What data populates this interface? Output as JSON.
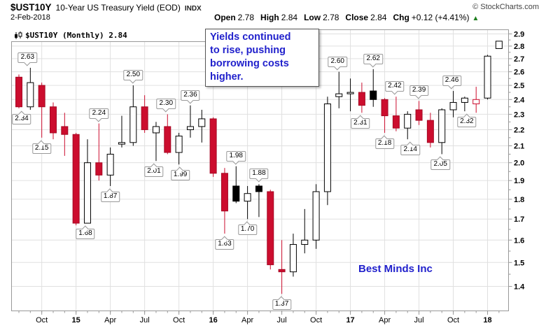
{
  "header": {
    "symbol": "$UST10Y",
    "title": "10-Year US Treasury Yield (EOD)",
    "exchange": "INDX",
    "copyright": "© StockCharts.com",
    "date": "2-Feb-2018",
    "quote": {
      "open_label": "Open",
      "open_value": "2.78",
      "high_label": "High",
      "high_value": "2.84",
      "low_label": "Low",
      "low_value": "2.78",
      "close_label": "Close",
      "close_value": "2.84",
      "chg_label": "Chg",
      "chg_value": "+0.12 (+4.41%)",
      "arrow": "▲"
    }
  },
  "legend": {
    "label": "$UST10Y (Monthly) 2.84"
  },
  "annotation": {
    "lines": [
      "Yields continued",
      "to rise, pushing",
      "borrowing costs",
      "higher."
    ]
  },
  "watermark": "Best Minds Inc",
  "colors": {
    "down_fill": "#cc0d2e",
    "down_stroke": "#a50a25",
    "black_fill": "#000000",
    "up_fill": "#ffffff",
    "outline": "#000000",
    "grid": "#e0e0e0",
    "frame": "#999999",
    "annotation_blue": "#2121cc",
    "change_green": "#1e7e1e",
    "tick_text": "#000000"
  },
  "chart_data": {
    "type": "candlestick",
    "scale": "log",
    "title": "$UST10Y (Monthly) 2.84",
    "y_ticks": [
      "2.9",
      "2.8",
      "2.7",
      "2.6",
      "2.5",
      "2.4",
      "2.3",
      "2.2",
      "2.1",
      "2.0",
      "1.9",
      "1.8",
      "1.7",
      "1.6",
      "1.5",
      "1.4"
    ],
    "y_range": [
      1.4,
      2.9
    ],
    "x_ticks": [
      {
        "label": "Oct",
        "candle": 3,
        "bold": false
      },
      {
        "label": "15",
        "candle": 6,
        "bold": true
      },
      {
        "label": "Apr",
        "candle": 9,
        "bold": false
      },
      {
        "label": "Jul",
        "candle": 12,
        "bold": false
      },
      {
        "label": "Oct",
        "candle": 15,
        "bold": false
      },
      {
        "label": "16",
        "candle": 18,
        "bold": true
      },
      {
        "label": "Apr",
        "candle": 21,
        "bold": false
      },
      {
        "label": "Jul",
        "candle": 24,
        "bold": false
      },
      {
        "label": "Oct",
        "candle": 27,
        "bold": false
      },
      {
        "label": "17",
        "candle": 30,
        "bold": true
      },
      {
        "label": "Apr",
        "candle": 33,
        "bold": false
      },
      {
        "label": "Jul",
        "candle": 36,
        "bold": false
      },
      {
        "label": "Oct",
        "candle": 39,
        "bold": false
      },
      {
        "label": "18",
        "candle": 42,
        "bold": true
      }
    ],
    "candles": [
      {
        "m": "Aug-2014",
        "o": 2.56,
        "h": 2.58,
        "l": 2.34,
        "c": 2.35,
        "s": "red"
      },
      {
        "m": "Sep-2014",
        "o": 2.35,
        "h": 2.63,
        "l": 2.33,
        "c": 2.52,
        "s": "white"
      },
      {
        "m": "Oct-2014",
        "o": 2.5,
        "h": 2.52,
        "l": 2.15,
        "c": 2.35,
        "s": "red"
      },
      {
        "m": "Nov-2014",
        "o": 2.35,
        "h": 2.38,
        "l": 2.14,
        "c": 2.18,
        "s": "red"
      },
      {
        "m": "Dec-2014",
        "o": 2.22,
        "h": 2.31,
        "l": 2.04,
        "c": 2.17,
        "s": "red"
      },
      {
        "m": "Jan-2015",
        "o": 2.17,
        "h": 2.18,
        "l": 1.67,
        "c": 1.68,
        "s": "red"
      },
      {
        "m": "Feb-2015",
        "o": 1.68,
        "h": 2.14,
        "l": 1.68,
        "c": 2.0,
        "s": "white"
      },
      {
        "m": "Mar-2015",
        "o": 2.0,
        "h": 2.24,
        "l": 1.9,
        "c": 1.93,
        "s": "red"
      },
      {
        "m": "Apr-2015",
        "o": 1.93,
        "h": 2.09,
        "l": 1.87,
        "c": 2.05,
        "s": "white"
      },
      {
        "m": "May-2015",
        "o": 2.11,
        "h": 2.29,
        "l": 2.09,
        "c": 2.12,
        "s": "white"
      },
      {
        "m": "Jun-2015",
        "o": 2.12,
        "h": 2.5,
        "l": 2.1,
        "c": 2.35,
        "s": "white"
      },
      {
        "m": "Jul-2015",
        "o": 2.35,
        "h": 2.43,
        "l": 2.18,
        "c": 2.2,
        "s": "red"
      },
      {
        "m": "Aug-2015",
        "o": 2.18,
        "h": 2.25,
        "l": 2.01,
        "c": 2.22,
        "s": "white"
      },
      {
        "m": "Sep-2015",
        "o": 2.22,
        "h": 2.3,
        "l": 2.05,
        "c": 2.06,
        "s": "red"
      },
      {
        "m": "Oct-2015",
        "o": 2.06,
        "h": 2.18,
        "l": 1.99,
        "c": 2.16,
        "s": "white"
      },
      {
        "m": "Nov-2015",
        "o": 2.2,
        "h": 2.36,
        "l": 2.15,
        "c": 2.22,
        "s": "white"
      },
      {
        "m": "Dec-2015",
        "o": 2.22,
        "h": 2.33,
        "l": 2.12,
        "c": 2.27,
        "s": "white"
      },
      {
        "m": "Jan-2016",
        "o": 2.27,
        "h": 2.28,
        "l": 1.92,
        "c": 1.94,
        "s": "red"
      },
      {
        "m": "Feb-2016",
        "o": 1.94,
        "h": 1.97,
        "l": 1.63,
        "c": 1.74,
        "s": "red"
      },
      {
        "m": "Mar-2016",
        "o": 1.87,
        "h": 1.98,
        "l": 1.78,
        "c": 1.79,
        "s": "black"
      },
      {
        "m": "Apr-2016",
        "o": 1.79,
        "h": 1.87,
        "l": 1.7,
        "c": 1.83,
        "s": "white"
      },
      {
        "m": "May-2016",
        "o": 1.87,
        "h": 1.88,
        "l": 1.71,
        "c": 1.84,
        "s": "black"
      },
      {
        "m": "Jun-2016",
        "o": 1.84,
        "h": 1.85,
        "l": 1.47,
        "c": 1.49,
        "s": "red"
      },
      {
        "m": "Jul-2016",
        "o": 1.47,
        "h": 1.6,
        "l": 1.37,
        "c": 1.46,
        "s": "red"
      },
      {
        "m": "Aug-2016",
        "o": 1.46,
        "h": 1.63,
        "l": 1.44,
        "c": 1.58,
        "s": "white"
      },
      {
        "m": "Sep-2016",
        "o": 1.58,
        "h": 1.75,
        "l": 1.54,
        "c": 1.6,
        "s": "white"
      },
      {
        "m": "Oct-2016",
        "o": 1.6,
        "h": 1.88,
        "l": 1.56,
        "c": 1.84,
        "s": "white"
      },
      {
        "m": "Nov-2016",
        "o": 1.84,
        "h": 2.42,
        "l": 1.77,
        "c": 2.37,
        "s": "white"
      },
      {
        "m": "Dec-2016",
        "o": 2.42,
        "h": 2.6,
        "l": 2.34,
        "c": 2.44,
        "s": "white"
      },
      {
        "m": "Jan-2017",
        "o": 2.44,
        "h": 2.55,
        "l": 2.32,
        "c": 2.45,
        "s": "white"
      },
      {
        "m": "Feb-2017",
        "o": 2.45,
        "h": 2.52,
        "l": 2.31,
        "c": 2.36,
        "s": "red"
      },
      {
        "m": "Mar-2017",
        "o": 2.46,
        "h": 2.62,
        "l": 2.35,
        "c": 2.4,
        "s": "black"
      },
      {
        "m": "Apr-2017",
        "o": 2.4,
        "h": 2.41,
        "l": 2.18,
        "c": 2.29,
        "s": "red"
      },
      {
        "m": "May-2017",
        "o": 2.29,
        "h": 2.42,
        "l": 2.19,
        "c": 2.21,
        "s": "red"
      },
      {
        "m": "Jun-2017",
        "o": 2.21,
        "h": 2.32,
        "l": 2.14,
        "c": 2.3,
        "s": "white"
      },
      {
        "m": "Jul-2017",
        "o": 2.33,
        "h": 2.39,
        "l": 2.23,
        "c": 2.26,
        "s": "red"
      },
      {
        "m": "Aug-2017",
        "o": 2.26,
        "h": 2.31,
        "l": 2.09,
        "c": 2.12,
        "s": "red"
      },
      {
        "m": "Sep-2017",
        "o": 2.12,
        "h": 2.34,
        "l": 2.05,
        "c": 2.33,
        "s": "white"
      },
      {
        "m": "Oct-2017",
        "o": 2.33,
        "h": 2.46,
        "l": 2.28,
        "c": 2.38,
        "s": "white"
      },
      {
        "m": "Nov-2017",
        "o": 2.38,
        "h": 2.42,
        "l": 2.32,
        "c": 2.41,
        "s": "white"
      },
      {
        "m": "Dec-2017",
        "o": 2.37,
        "h": 2.49,
        "l": 2.31,
        "c": 2.4,
        "s": "redhollow"
      },
      {
        "m": "Jan-2018",
        "o": 2.41,
        "h": 2.73,
        "l": 2.4,
        "c": 2.72,
        "s": "white"
      },
      {
        "m": "Feb-2018",
        "o": 2.78,
        "h": 2.84,
        "l": 2.78,
        "c": 2.84,
        "s": "white"
      }
    ],
    "callouts": [
      {
        "text": "2.63",
        "candle": 2,
        "side": "high",
        "dx": -4
      },
      {
        "text": "2.34",
        "candle": 1,
        "side": "low",
        "dx": 4
      },
      {
        "text": "2.15",
        "candle": 3,
        "side": "low",
        "dx": 0
      },
      {
        "text": "2.24",
        "candle": 8,
        "side": "high",
        "dx": 0
      },
      {
        "text": "1.68",
        "candle": 7,
        "side": "low",
        "dx": -3
      },
      {
        "text": "1.87",
        "candle": 9,
        "side": "low",
        "dx": 0
      },
      {
        "text": "2.50",
        "candle": 11,
        "side": "high",
        "dx": 0
      },
      {
        "text": "2.01",
        "candle": 13,
        "side": "low",
        "dx": -3
      },
      {
        "text": "2.30",
        "candle": 14,
        "side": "high",
        "dx": -2
      },
      {
        "text": "1.99",
        "candle": 15,
        "side": "low",
        "dx": 2
      },
      {
        "text": "2.36",
        "candle": 16,
        "side": "high",
        "dx": 0
      },
      {
        "text": "1.98",
        "candle": 20,
        "side": "high",
        "dx": 0
      },
      {
        "text": "1.63",
        "candle": 19,
        "side": "low",
        "dx": 0
      },
      {
        "text": "1.70",
        "candle": 21,
        "side": "low",
        "dx": 0
      },
      {
        "text": "1.88",
        "candle": 22,
        "side": "high",
        "dx": 0
      },
      {
        "text": "1.37",
        "candle": 24,
        "side": "low",
        "dx": 0
      },
      {
        "text": "2.60",
        "candle": 29,
        "side": "high",
        "dx": -2
      },
      {
        "text": "2.62",
        "candle": 32,
        "side": "high",
        "dx": 0
      },
      {
        "text": "2.31",
        "candle": 31,
        "side": "low",
        "dx": -2
      },
      {
        "text": "2.18",
        "candle": 33,
        "side": "low",
        "dx": 0
      },
      {
        "text": "2.42",
        "candle": 34,
        "side": "high",
        "dx": -2
      },
      {
        "text": "2.14",
        "candle": 35,
        "side": "low",
        "dx": 4
      },
      {
        "text": "2.39",
        "candle": 36,
        "side": "high",
        "dx": 0
      },
      {
        "text": "2.05",
        "candle": 38,
        "side": "low",
        "dx": -2
      },
      {
        "text": "2.46",
        "candle": 39,
        "side": "high",
        "dx": -2
      },
      {
        "text": "2.32",
        "candle": 40,
        "side": "low",
        "dx": 3
      }
    ]
  }
}
